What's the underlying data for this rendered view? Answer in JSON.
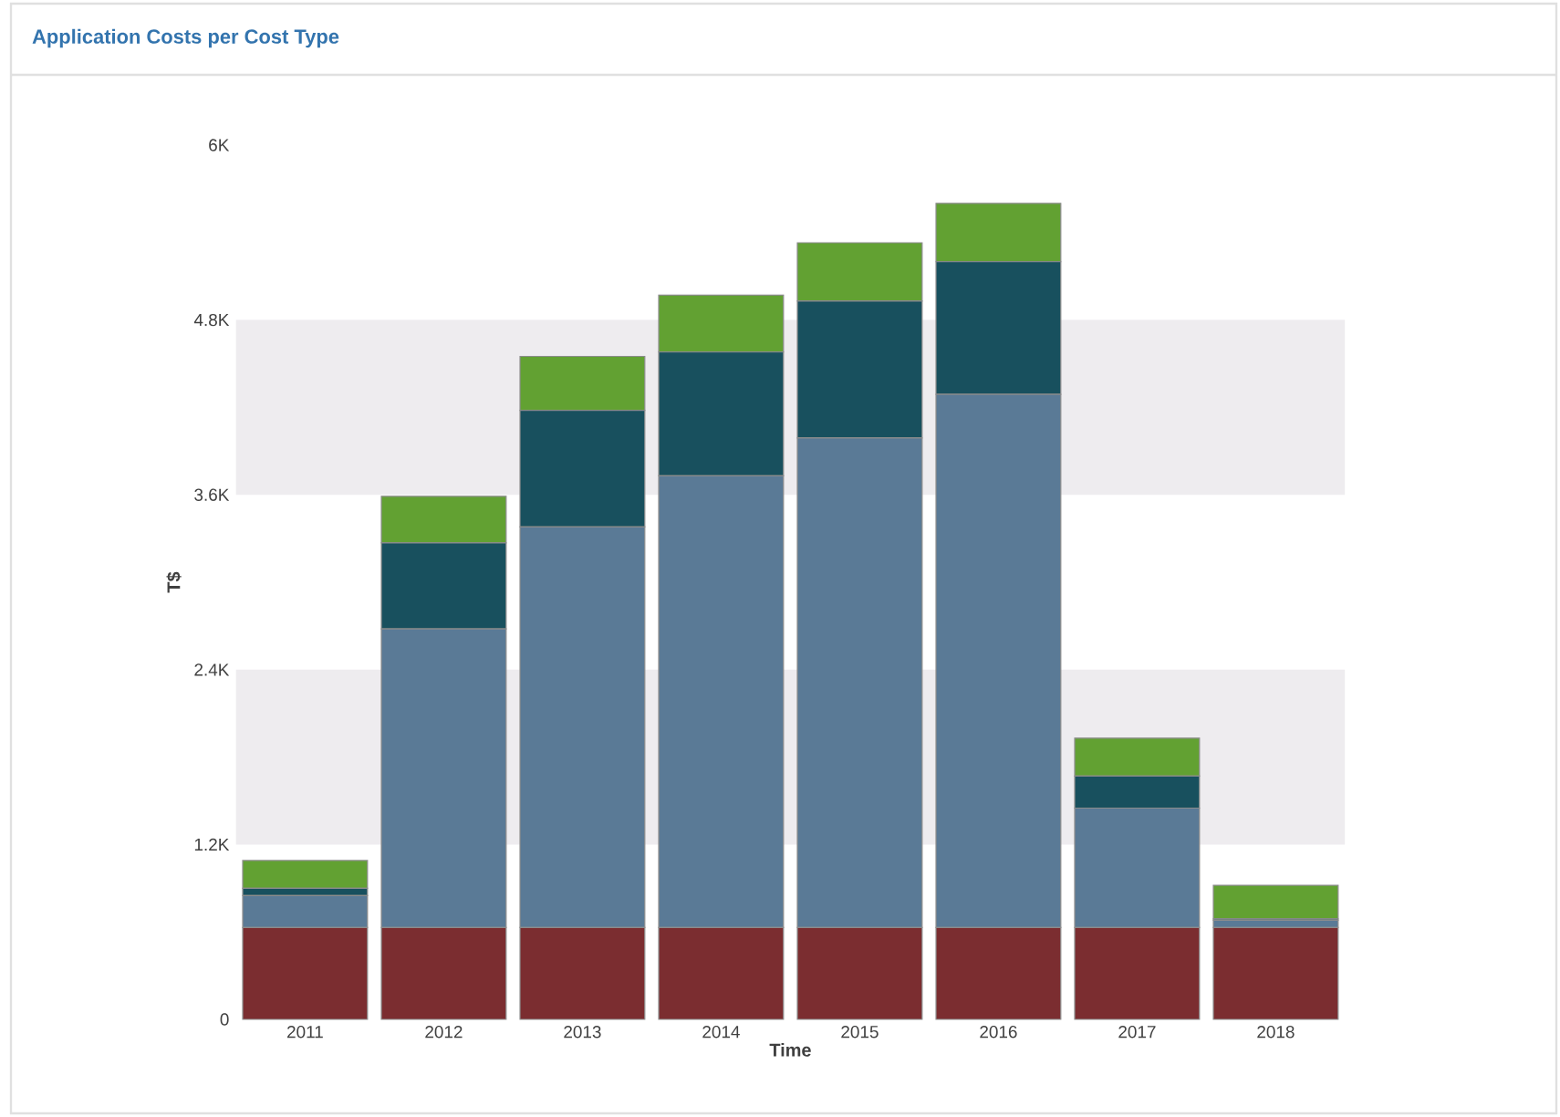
{
  "chart_data": {
    "type": "bar",
    "title": "Application Costs per Cost Type",
    "xlabel": "Time",
    "ylabel": "T$",
    "stacked": true,
    "categories": [
      "2011",
      "2012",
      "2013",
      "2014",
      "2015",
      "2016",
      "2017",
      "2018"
    ],
    "series": [
      {
        "color": "#7b2d30",
        "values": [
          630,
          630,
          630,
          630,
          630,
          630,
          630,
          630
        ]
      },
      {
        "color": "#5a7a96",
        "values": [
          220,
          2050,
          2750,
          3100,
          3360,
          3660,
          820,
          50
        ]
      },
      {
        "color": "#18505e",
        "values": [
          50,
          590,
          800,
          850,
          940,
          910,
          220,
          10
        ]
      },
      {
        "color": "#62a132",
        "values": [
          190,
          320,
          370,
          390,
          400,
          400,
          260,
          230
        ]
      }
    ],
    "ylim": [
      0,
      6000
    ],
    "yticks": [
      0,
      {
        "value": 1200,
        "label": "1.2K"
      },
      {
        "value": 2400,
        "label": "2.4K"
      },
      {
        "value": 3600,
        "label": "3.6K"
      },
      {
        "value": 4800,
        "label": "4.8K"
      },
      {
        "value": 6000,
        "label": "6K"
      }
    ],
    "bands": [
      {
        "axis": "y",
        "from": 1200,
        "to": 2400,
        "color": "#eeecef"
      },
      {
        "axis": "y",
        "from": 3600,
        "to": 4800,
        "color": "#eeecef"
      }
    ]
  }
}
